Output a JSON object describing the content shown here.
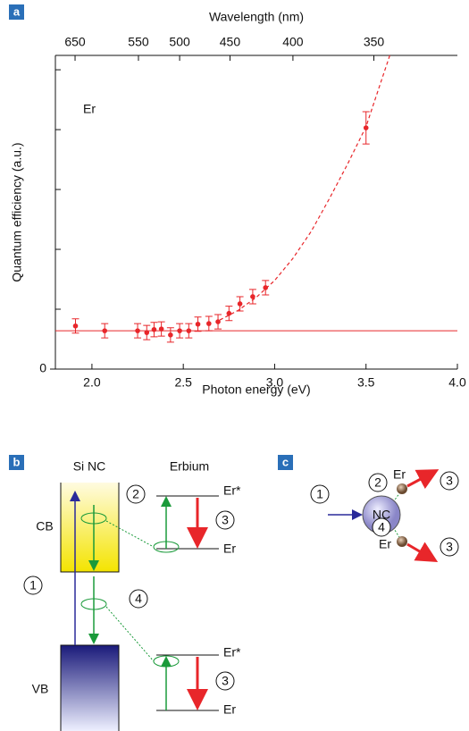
{
  "chart_data": {
    "type": "scatter",
    "panel_label": "a",
    "xlabel": "Photon energy (eV)",
    "ylabel": "Quantum efficiency (a.u.)",
    "x2label": "Wavelength (nm)",
    "annotation": "Er",
    "xlim": [
      1.8,
      4.0
    ],
    "xticks": [
      {
        "value": 2,
        "label": "2.0"
      },
      {
        "value": 2.5,
        "label": "2.5"
      },
      {
        "value": 3,
        "label": "3.0"
      },
      {
        "value": 3.5,
        "label": "3.5"
      },
      {
        "value": 4,
        "label": "4.0"
      }
    ],
    "ylim": [
      0,
      5.24
    ],
    "yticks": [
      0
    ],
    "yminorticks": [
      1,
      2,
      3,
      4,
      5
    ],
    "x2ticks": [
      650,
      550,
      500,
      450,
      400,
      350
    ],
    "series": [
      {
        "color": "#e8262a",
        "x": [
          1.91,
          2.07,
          2.25,
          2.3,
          2.34,
          2.38,
          2.43,
          2.48,
          2.53,
          2.58,
          2.64,
          2.69,
          2.75,
          2.81,
          2.88,
          2.95,
          3.5
        ],
        "values": [
          0.72,
          0.64,
          0.64,
          0.61,
          0.66,
          0.67,
          0.57,
          0.64,
          0.64,
          0.75,
          0.76,
          0.79,
          0.93,
          1.09,
          1.21,
          1.36,
          4.03
        ],
        "errors": [
          0.12,
          0.12,
          0.12,
          0.12,
          0.12,
          0.12,
          0.12,
          0.12,
          0.12,
          0.12,
          0.12,
          0.12,
          0.12,
          0.12,
          0.12,
          0.12,
          0.27
        ]
      }
    ],
    "fit": {
      "color": "#e8262a",
      "style": "dashed",
      "x": [
        2.7,
        2.8,
        2.9,
        3.0,
        3.1,
        3.2,
        3.3,
        3.4,
        3.5,
        3.63
      ],
      "values": [
        0.82,
        0.98,
        1.2,
        1.48,
        1.85,
        2.3,
        2.85,
        3.43,
        4.05,
        5.24
      ]
    },
    "reference_line": {
      "color": "#e8262a",
      "value": 0.64
    }
  },
  "panel_b": {
    "label": "b",
    "si_nc": "Si NC",
    "erbium": "Erbium",
    "cb": "CB",
    "vb": "VB",
    "upper": {
      "er_star": "Er*",
      "er": "Er"
    },
    "lower": {
      "er_star": "Er*",
      "er": "Er"
    },
    "steps": [
      "1",
      "2",
      "3",
      "4",
      "3"
    ]
  },
  "panel_c": {
    "label": "c",
    "nc": "NC",
    "er_top": "Er",
    "er_bottom": "Er",
    "steps": [
      "1",
      "2",
      "4",
      "3",
      "3"
    ]
  }
}
